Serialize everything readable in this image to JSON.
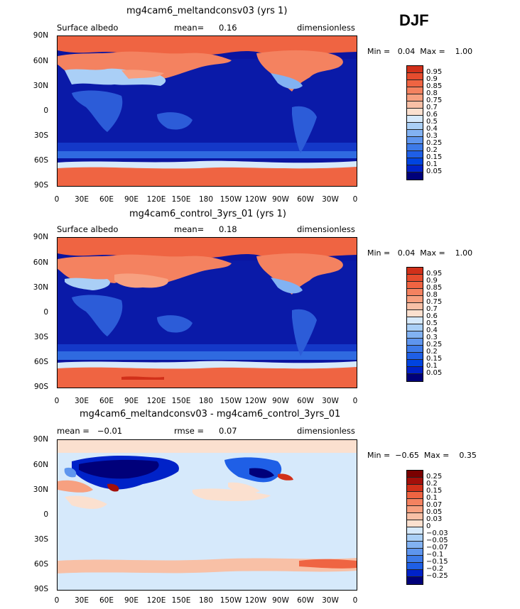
{
  "season": "DJF",
  "colors": {
    "albedo_scale": [
      "#00007a",
      "#0022c8",
      "#0044e0",
      "#1f5fe6",
      "#3d7ae8",
      "#5e95ee",
      "#82b2f2",
      "#aacff6",
      "#d6e9fb",
      "#fbe0cf",
      "#f8c0a6",
      "#f7a080",
      "#f48260",
      "#ef6442",
      "#e64c2e",
      "#d1301a",
      "#a30f0a",
      "#7a0000"
    ],
    "diff_scale": [
      "#00007a",
      "#0022c8",
      "#1f5fe6",
      "#3d7ae8",
      "#5e95ee",
      "#82b2f2",
      "#aacff6",
      "#d6e9fb",
      "#fbe0cf",
      "#f8c0a6",
      "#f7a080",
      "#f48260",
      "#ef6442",
      "#d1301a",
      "#a30f0a",
      "#7a0000"
    ]
  },
  "panels": [
    {
      "title": "mg4cam6_meltandconsv03 (yrs 1)",
      "left_label": "Surface albedo",
      "center_label": "mean=",
      "center_value": "0.16",
      "right_label": "dimensionless",
      "min_max": "Min =   0.04  Max =    1.00",
      "legend_labels": [
        "0.95",
        "0.9",
        "0.85",
        "0.8",
        "0.75",
        "0.7",
        "0.6",
        "0.5",
        "0.4",
        "0.3",
        "0.25",
        "0.2",
        "0.15",
        "0.1",
        "0.05"
      ]
    },
    {
      "title": "mg4cam6_control_3yrs_01 (yrs 1)",
      "left_label": "Surface albedo",
      "center_label": "mean=",
      "center_value": "0.18",
      "right_label": "dimensionless",
      "min_max": "Min =   0.04  Max =    1.00",
      "legend_labels": [
        "0.95",
        "0.9",
        "0.85",
        "0.8",
        "0.75",
        "0.7",
        "0.6",
        "0.5",
        "0.4",
        "0.3",
        "0.25",
        "0.2",
        "0.15",
        "0.1",
        "0.05"
      ]
    },
    {
      "title": "mg4cam6_meltandconsv03 - mg4cam6_control_3yrs_01",
      "left_label": "mean =   −0.01",
      "center_label": "rmse =",
      "center_value": "0.07",
      "right_label": "dimensionless",
      "min_max": "Min =  −0.65  Max =    0.35",
      "legend_labels": [
        "0.25",
        "0.2",
        "0.15",
        "0.1",
        "0.07",
        "0.05",
        "0.03",
        "0",
        "−0.03",
        "−0.05",
        "−0.07",
        "−0.1",
        "−0.15",
        "−0.2",
        "−0.25"
      ]
    }
  ],
  "lat_ticks": [
    "90N",
    "60N",
    "30N",
    "0",
    "30S",
    "60S",
    "90S"
  ],
  "lon_ticks": [
    "0",
    "30E",
    "60E",
    "90E",
    "120E",
    "150E",
    "180",
    "150W",
    "120W",
    "90W",
    "60W",
    "30W",
    "0"
  ]
}
